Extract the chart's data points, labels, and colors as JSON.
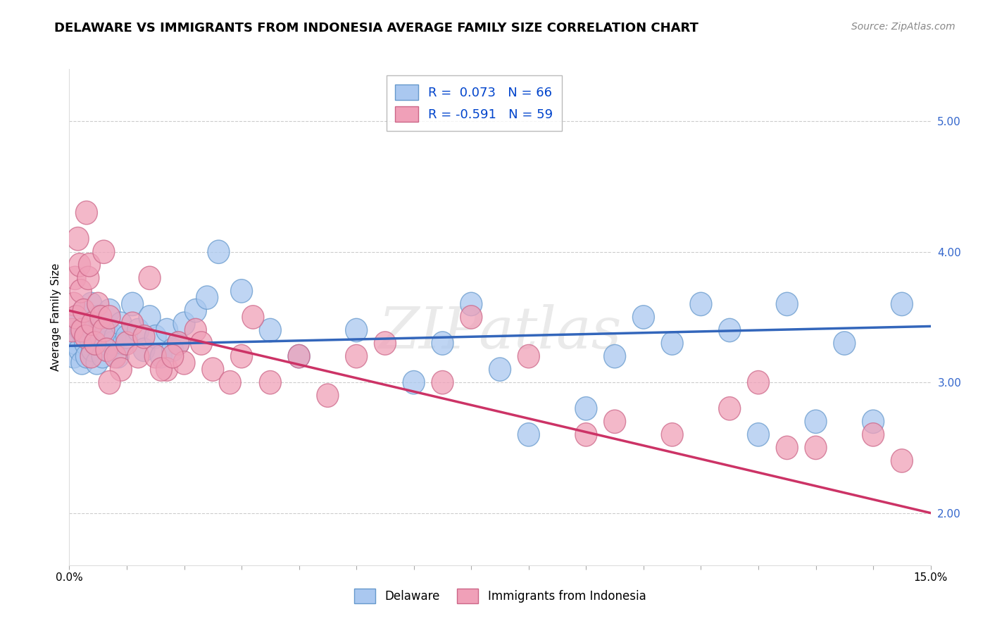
{
  "title": "DELAWARE VS IMMIGRANTS FROM INDONESIA AVERAGE FAMILY SIZE CORRELATION CHART",
  "source": "Source: ZipAtlas.com",
  "ylabel": "Average Family Size",
  "xmin": 0.0,
  "xmax": 15.0,
  "ymin": 1.6,
  "ymax": 5.4,
  "yticks": [
    2.0,
    3.0,
    4.0,
    5.0
  ],
  "series1_label": "Delaware",
  "series1_color": "#aac8f0",
  "series1_edge_color": "#6699cc",
  "series1_R": 0.073,
  "series1_N": 66,
  "series1_line_color": "#3366bb",
  "series1_line_start": 3.28,
  "series1_line_end": 3.43,
  "series2_label": "Immigrants from Indonesia",
  "series2_color": "#f0a0b8",
  "series2_edge_color": "#cc6688",
  "series2_R": -0.591,
  "series2_N": 59,
  "series2_line_color": "#cc3366",
  "series2_line_start": 3.55,
  "series2_line_end": 2.0,
  "legend_text_color": "#0044cc",
  "background_color": "#ffffff",
  "grid_color": "#cccccc",
  "title_fontsize": 13,
  "source_fontsize": 10,
  "label_fontsize": 11,
  "tick_fontsize": 11,
  "series1_x": [
    0.05,
    0.08,
    0.1,
    0.12,
    0.15,
    0.18,
    0.2,
    0.22,
    0.25,
    0.28,
    0.3,
    0.33,
    0.35,
    0.38,
    0.4,
    0.42,
    0.45,
    0.48,
    0.5,
    0.55,
    0.58,
    0.6,
    0.63,
    0.65,
    0.68,
    0.7,
    0.75,
    0.8,
    0.85,
    0.9,
    0.95,
    1.0,
    1.1,
    1.2,
    1.3,
    1.4,
    1.5,
    1.6,
    1.7,
    1.8,
    1.9,
    2.0,
    2.2,
    2.4,
    2.6,
    3.0,
    3.5,
    4.0,
    5.0,
    6.0,
    6.5,
    7.5,
    8.0,
    9.0,
    9.5,
    10.5,
    11.0,
    12.0,
    12.5,
    13.5,
    14.0,
    14.5,
    7.0,
    10.0,
    11.5,
    13.0
  ],
  "series1_y": [
    3.35,
    3.2,
    3.45,
    3.3,
    3.5,
    3.25,
    3.4,
    3.15,
    3.55,
    3.3,
    3.2,
    3.45,
    3.35,
    3.6,
    3.25,
    3.4,
    3.3,
    3.15,
    3.5,
    3.35,
    3.2,
    3.45,
    3.3,
    3.4,
    3.25,
    3.55,
    3.3,
    3.35,
    3.2,
    3.45,
    3.3,
    3.35,
    3.6,
    3.4,
    3.25,
    3.5,
    3.35,
    3.2,
    3.4,
    3.25,
    3.3,
    3.45,
    3.55,
    3.65,
    4.0,
    3.7,
    3.4,
    3.2,
    3.4,
    3.0,
    3.3,
    3.1,
    2.6,
    2.8,
    3.2,
    3.3,
    3.6,
    2.6,
    3.6,
    3.3,
    2.7,
    3.6,
    3.6,
    3.5,
    3.4,
    2.7
  ],
  "series2_x": [
    0.05,
    0.08,
    0.1,
    0.12,
    0.15,
    0.18,
    0.2,
    0.22,
    0.25,
    0.28,
    0.3,
    0.33,
    0.35,
    0.38,
    0.4,
    0.45,
    0.5,
    0.55,
    0.6,
    0.65,
    0.7,
    0.8,
    0.9,
    1.0,
    1.1,
    1.2,
    1.3,
    1.5,
    1.7,
    1.9,
    2.0,
    2.2,
    2.5,
    2.8,
    3.0,
    3.5,
    4.0,
    4.5,
    5.0,
    5.5,
    6.5,
    8.0,
    9.0,
    9.5,
    10.5,
    11.5,
    12.5,
    13.0,
    14.5,
    1.6,
    0.6,
    0.7,
    1.4,
    1.8,
    2.3,
    3.2,
    7.0,
    12.0,
    14.0
  ],
  "series2_y": [
    3.4,
    3.6,
    3.8,
    3.5,
    4.1,
    3.9,
    3.7,
    3.4,
    3.55,
    3.35,
    4.3,
    3.8,
    3.9,
    3.2,
    3.45,
    3.3,
    3.6,
    3.5,
    3.4,
    3.25,
    3.5,
    3.2,
    3.1,
    3.3,
    3.45,
    3.2,
    3.35,
    3.2,
    3.1,
    3.3,
    3.15,
    3.4,
    3.1,
    3.0,
    3.2,
    3.0,
    3.2,
    2.9,
    3.2,
    3.3,
    3.0,
    3.2,
    2.6,
    2.7,
    2.6,
    2.8,
    2.5,
    2.5,
    2.4,
    3.1,
    4.0,
    3.0,
    3.8,
    3.2,
    3.3,
    3.5,
    3.5,
    3.0,
    2.6
  ]
}
